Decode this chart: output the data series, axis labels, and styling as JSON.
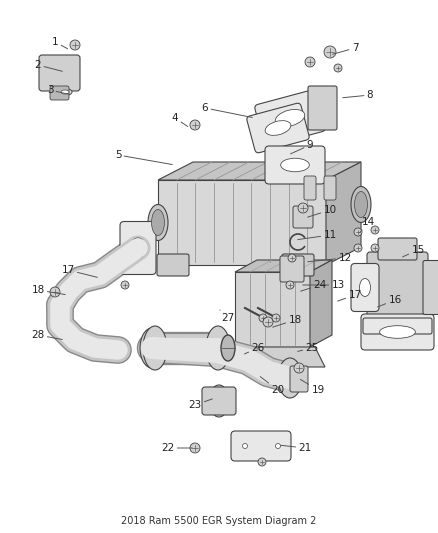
{
  "bg": "#ffffff",
  "line_color": "#444444",
  "fill_light": "#e8e8e8",
  "fill_mid": "#d0d0d0",
  "fill_dark": "#b8b8b8",
  "label_color": "#222222",
  "labels": [
    [
      "1",
      55,
      42,
      70,
      50
    ],
    [
      "2",
      38,
      65,
      65,
      72
    ],
    [
      "3",
      50,
      90,
      72,
      95
    ],
    [
      "4",
      175,
      118,
      190,
      128
    ],
    [
      "5",
      118,
      155,
      175,
      165
    ],
    [
      "6",
      205,
      108,
      255,
      118
    ],
    [
      "7",
      355,
      48,
      330,
      55
    ],
    [
      "8",
      370,
      95,
      340,
      98
    ],
    [
      "9",
      310,
      145,
      288,
      155
    ],
    [
      "10",
      330,
      210,
      305,
      218
    ],
    [
      "11",
      330,
      235,
      295,
      240
    ],
    [
      "12",
      345,
      258,
      305,
      262
    ],
    [
      "13",
      338,
      285,
      300,
      285
    ],
    [
      "14",
      368,
      222,
      358,
      235
    ],
    [
      "15",
      418,
      250,
      400,
      258
    ],
    [
      "16",
      395,
      300,
      375,
      308
    ],
    [
      "17",
      68,
      270,
      100,
      278
    ],
    [
      "17",
      355,
      295,
      335,
      302
    ],
    [
      "18",
      38,
      290,
      68,
      295
    ],
    [
      "18",
      295,
      320,
      270,
      328
    ],
    [
      "19",
      318,
      390,
      298,
      378
    ],
    [
      "20",
      278,
      390,
      258,
      375
    ],
    [
      "21",
      305,
      448,
      278,
      445
    ],
    [
      "22",
      168,
      448,
      195,
      448
    ],
    [
      "23",
      195,
      405,
      215,
      398
    ],
    [
      "24",
      320,
      285,
      298,
      292
    ],
    [
      "25",
      312,
      348,
      295,
      352
    ],
    [
      "26",
      258,
      348,
      242,
      355
    ],
    [
      "27",
      228,
      318,
      218,
      308
    ],
    [
      "28",
      38,
      335,
      65,
      340
    ]
  ]
}
